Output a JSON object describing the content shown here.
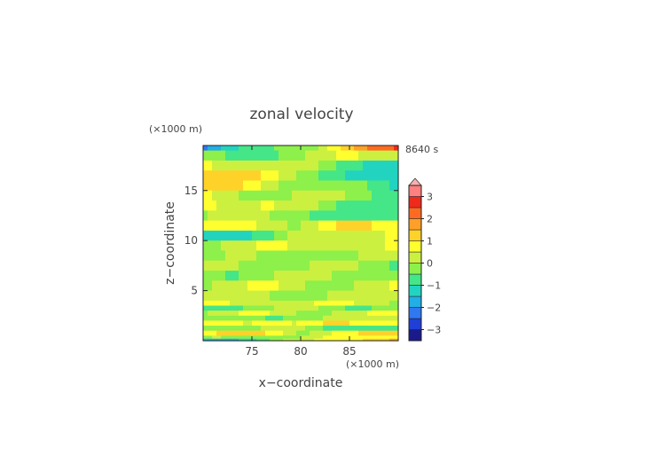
{
  "chart_data": {
    "type": "heatmap",
    "title": "zonal velocity",
    "xlabel": "x−coordinate",
    "ylabel": "z−coordinate",
    "x_unit": "(×1000 m)",
    "y_unit": "(×1000 m)",
    "time_label": "8640 s",
    "x_range": [
      70,
      90
    ],
    "y_range": [
      0,
      19.5
    ],
    "x_ticks": [
      75,
      80,
      85
    ],
    "y_ticks": [
      5,
      10,
      15
    ],
    "colorbar": {
      "levels": [
        -3.5,
        -3,
        -2.5,
        -2,
        -1.5,
        -1,
        -0.5,
        0,
        0.5,
        1,
        1.5,
        2,
        2.5,
        3,
        3.5
      ],
      "tick_labels": [
        "−3",
        "−2",
        "−1",
        "0",
        "1",
        "2",
        "3"
      ],
      "tick_values": [
        -3,
        -2,
        -1,
        0,
        1,
        2,
        3
      ],
      "colors": [
        "#1a1a8c",
        "#1f3fd6",
        "#2f78f0",
        "#22aee6",
        "#22d4c0",
        "#44e688",
        "#8ef04a",
        "#ccf040",
        "#ffff30",
        "#ffd22a",
        "#ffa028",
        "#ff6a22",
        "#ee2a1a",
        "#ff8080",
        "#ffb0b0"
      ],
      "extend_max_triangle": true
    },
    "field_bands": [
      {
        "z": [
          19.0,
          19.5
        ],
        "left": -2.2,
        "right": 2.4
      },
      {
        "z": [
          18.0,
          19.0
        ],
        "left": -0.8,
        "right": 0.6
      },
      {
        "z": [
          17.0,
          18.0
        ],
        "left": 0.8,
        "right": -1.0
      },
      {
        "z": [
          16.0,
          17.0
        ],
        "left": 1.6,
        "right": -1.6
      },
      {
        "z": [
          15.0,
          16.0
        ],
        "left": 1.2,
        "right": -1.2
      },
      {
        "z": [
          14.0,
          15.0
        ],
        "left": 0.4,
        "right": -0.4
      },
      {
        "z": [
          13.0,
          14.0
        ],
        "left": 1.0,
        "right": -1.0
      },
      {
        "z": [
          12.0,
          13.0
        ],
        "left": 0.2,
        "right": -1.2
      },
      {
        "z": [
          11.0,
          12.0
        ],
        "left": 0.6,
        "right": 0.8
      },
      {
        "z": [
          10.0,
          11.0
        ],
        "left": -1.2,
        "right": 1.0
      },
      {
        "z": [
          9.0,
          10.0
        ],
        "left": 0.3,
        "right": 0.4
      },
      {
        "z": [
          8.0,
          9.0
        ],
        "left": -0.3,
        "right": -0.2
      },
      {
        "z": [
          7.0,
          8.0
        ],
        "left": 0.1,
        "right": -0.3
      },
      {
        "z": [
          6.0,
          7.0
        ],
        "left": -0.2,
        "right": 0.0
      },
      {
        "z": [
          5.0,
          6.0
        ],
        "left": 0.3,
        "right": 0.2
      },
      {
        "z": [
          4.0,
          5.0
        ],
        "left": 0.1,
        "right": 0.1
      },
      {
        "z": [
          3.5,
          4.0
        ],
        "left": 0.6,
        "right": 0.3
      },
      {
        "z": [
          3.0,
          3.5
        ],
        "left": -0.3,
        "right": -0.2
      },
      {
        "z": [
          2.5,
          3.0
        ],
        "left": 0.2,
        "right": 0.4
      },
      {
        "z": [
          2.0,
          2.5
        ],
        "left": -0.6,
        "right": 0.3
      },
      {
        "z": [
          1.5,
          2.0
        ],
        "left": 0.8,
        "right": 1.0
      },
      {
        "z": [
          1.0,
          1.5
        ],
        "left": 0.0,
        "right": -0.8
      },
      {
        "z": [
          0.5,
          1.0
        ],
        "left": 0.9,
        "right": 0.8
      },
      {
        "z": [
          0.2,
          0.5
        ],
        "left": -0.4,
        "right": 1.0
      },
      {
        "z": [
          0.0,
          0.2
        ],
        "left": -1.8,
        "right": 2.0
      }
    ]
  }
}
